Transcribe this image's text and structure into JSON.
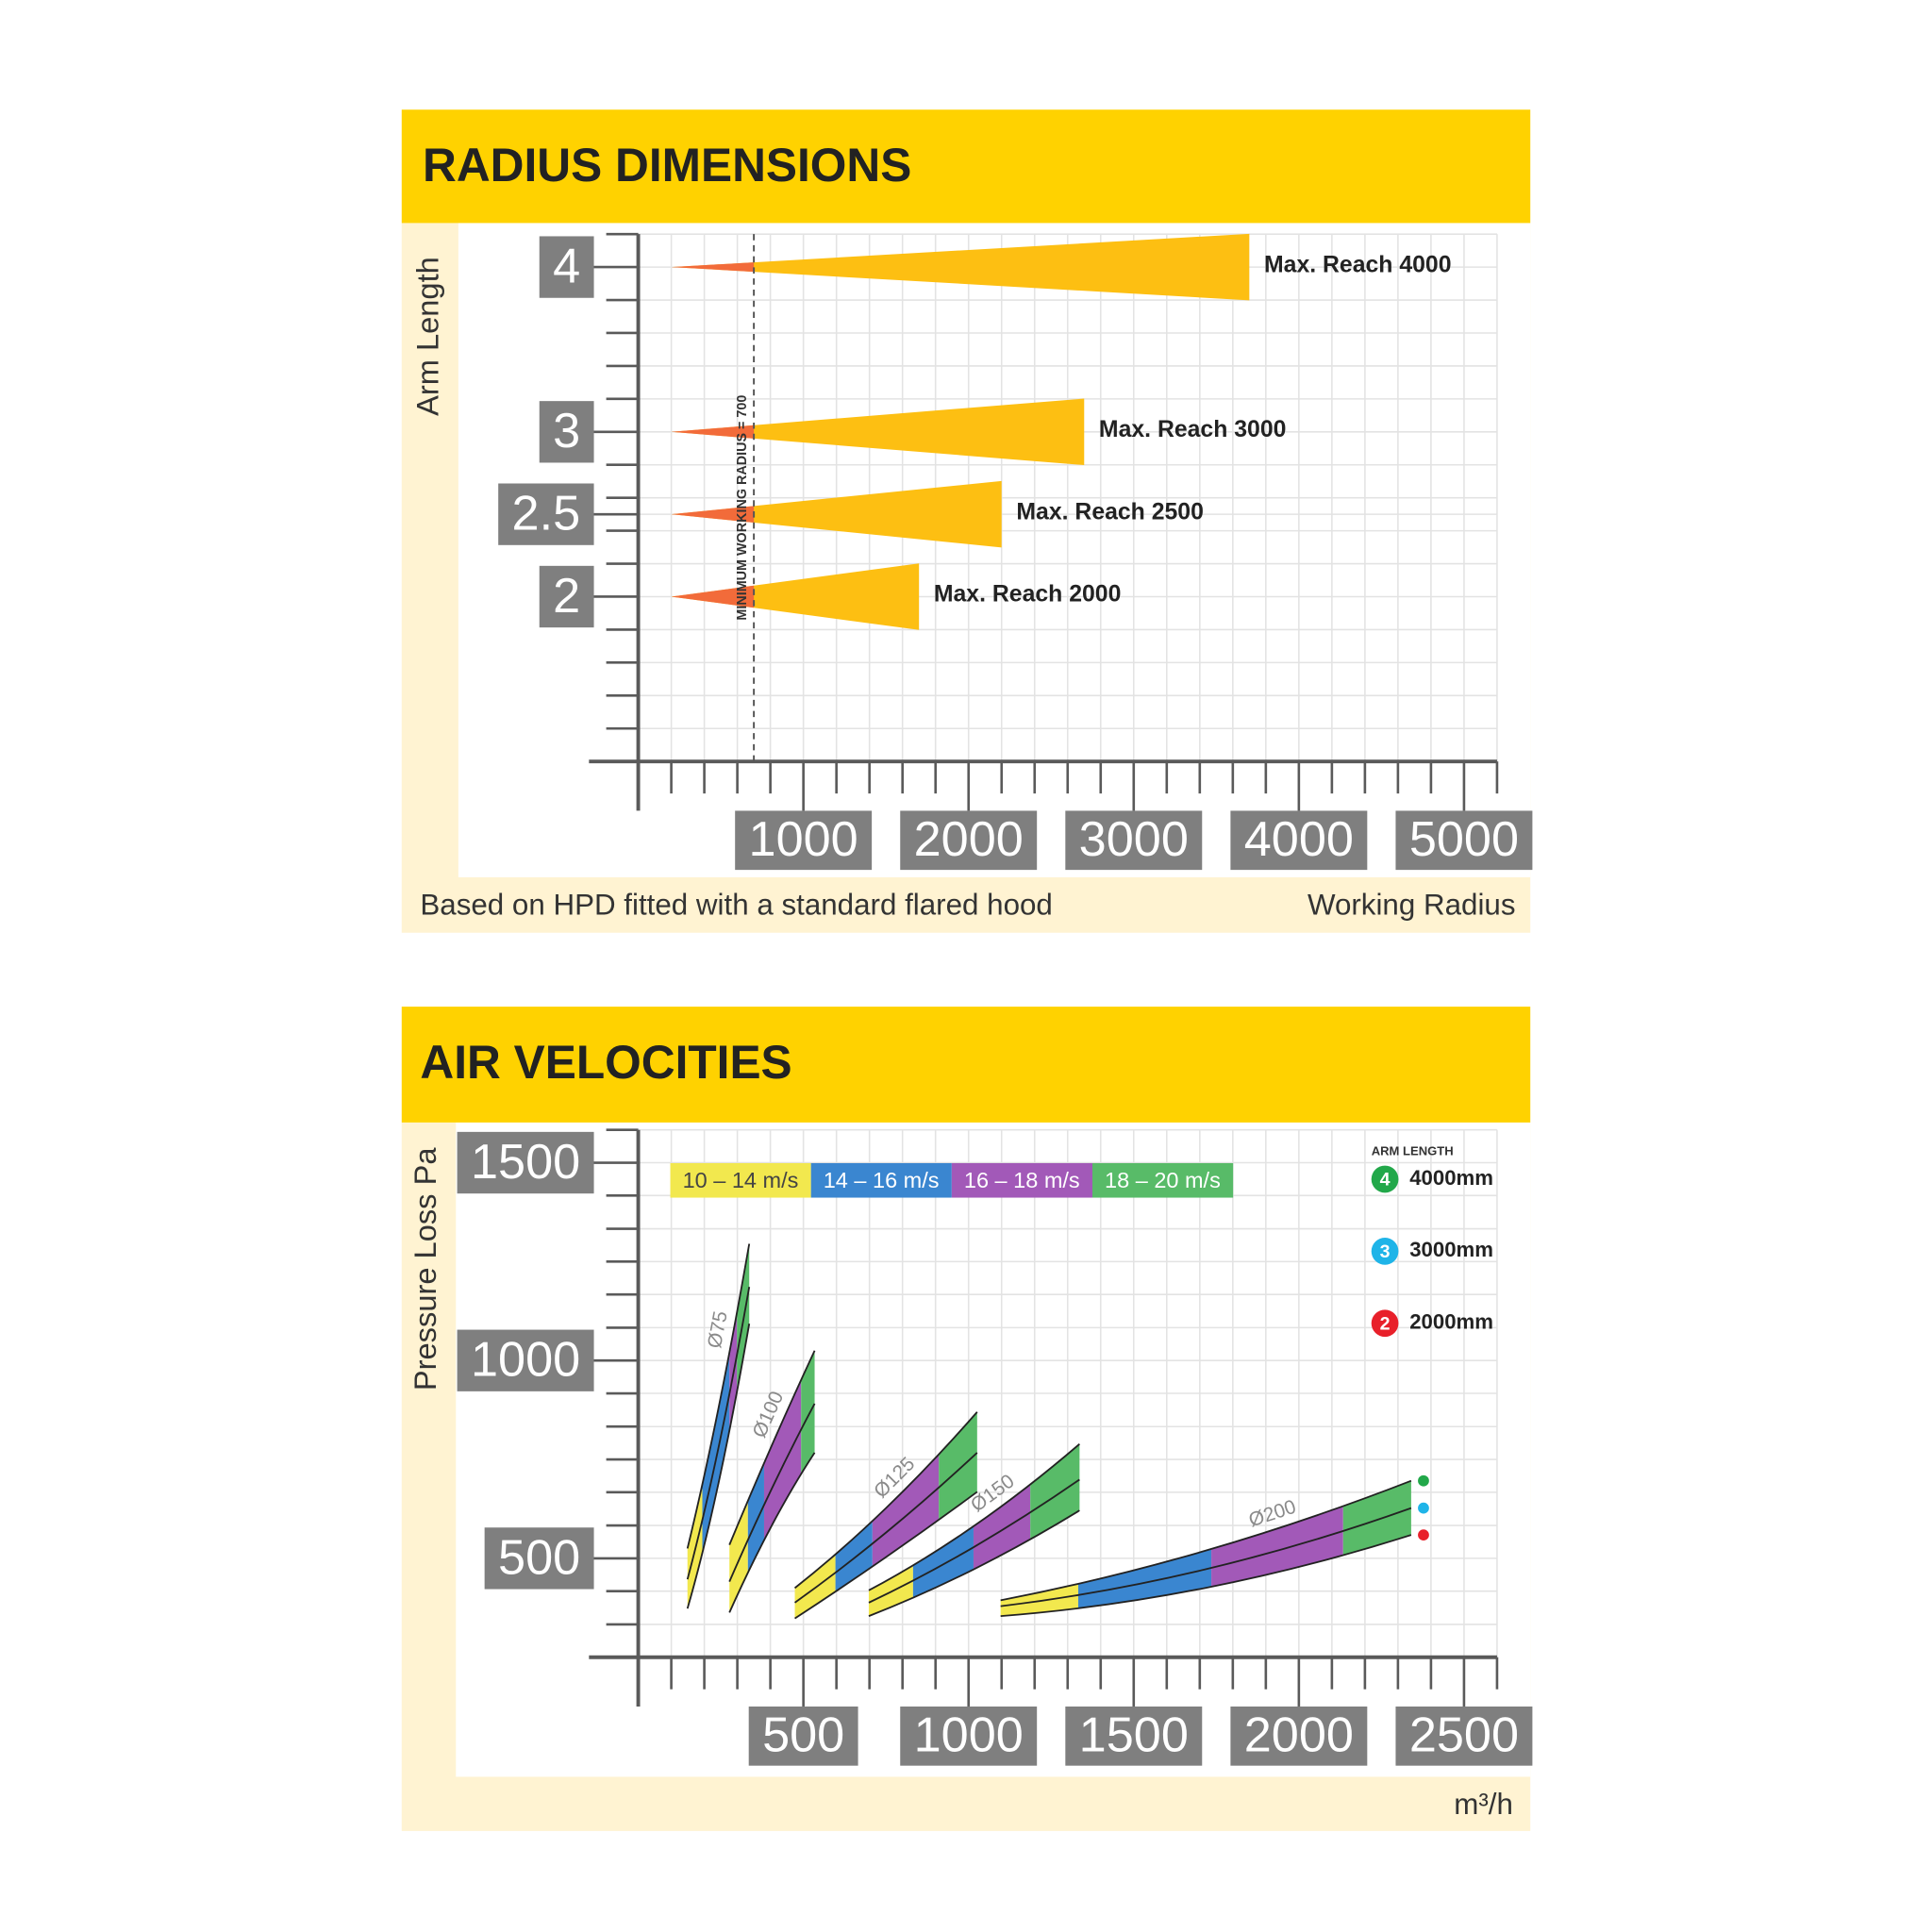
{
  "chart_data": [
    {
      "type": "wedge",
      "title": "RADIUS DIMENSIONS",
      "y_label": "Arm Length",
      "x_label": "Working Radius",
      "footnote": "Based on HPD fitted with a standard flared hood",
      "xlim": [
        0,
        5200
      ],
      "xticks": [
        1000,
        2000,
        3000,
        4000,
        5000
      ],
      "x_minor_ticks": [
        200,
        400,
        600,
        800,
        1200,
        1400,
        1600,
        1800,
        2200,
        2400,
        2600,
        2800,
        3200,
        3400,
        3600,
        3800,
        4200,
        4400,
        4600,
        4800,
        5200
      ],
      "ylim": [
        1,
        4.2
      ],
      "yticks": [
        2,
        2.5,
        3,
        4
      ],
      "y_minor_ticks": [
        1.2,
        1.4,
        1.6,
        1.8,
        2.2,
        2.4,
        2.6,
        2.8,
        3.2,
        3.4,
        3.6,
        3.8,
        4.2
      ],
      "grid": true,
      "min_radius": 700,
      "min_radius_label": "MINIMUM WORKING RADIUS = 700",
      "reach_color": "#fdbf12",
      "min_color": "#f26b3a",
      "series": [
        {
          "name": "Max. Reach 4000",
          "arm": 4,
          "start": 200,
          "end": 3700
        },
        {
          "name": "Max. Reach 3000",
          "arm": 3,
          "start": 200,
          "end": 2700
        },
        {
          "name": "Max. Reach 2500",
          "arm": 2.5,
          "start": 200,
          "end": 2200
        },
        {
          "name": "Max. Reach 2000",
          "arm": 2,
          "start": 200,
          "end": 1700
        }
      ]
    },
    {
      "type": "velocity",
      "title": "AIR VELOCITIES",
      "y_label": "Pressure Loss Pa",
      "x_label": "m³/h",
      "xlim": [
        0,
        2600
      ],
      "xticks": [
        500,
        1000,
        1500,
        2000,
        2500
      ],
      "x_minor_ticks": [
        100,
        200,
        300,
        400,
        600,
        700,
        800,
        900,
        1100,
        1200,
        1300,
        1400,
        1600,
        1700,
        1800,
        1900,
        2100,
        2200,
        2300,
        2400,
        2600
      ],
      "ylim": [
        250,
        1583
      ],
      "yticks": [
        500,
        1000,
        1500
      ],
      "y_minor_ticks": [
        333,
        417,
        583,
        667,
        750,
        833,
        917,
        1083,
        1167,
        1250,
        1333,
        1417,
        1583
      ],
      "grid": true,
      "velocity_bands": [
        {
          "name": "10 – 14 m/s",
          "color": "#f2e84e"
        },
        {
          "name": "14 – 16 m/s",
          "color": "#3a86d0"
        },
        {
          "name": "16 – 18 m/s",
          "color": "#a259b8"
        },
        {
          "name": "18 – 20 m/s",
          "color": "#58bb68"
        }
      ],
      "legend_title": "ARM LENGTH",
      "arm_lengths": [
        {
          "badge": "4",
          "name": "4000mm",
          "color": "#22a84a"
        },
        {
          "badge": "3",
          "name": "3000mm",
          "color": "#1fb4e8"
        },
        {
          "badge": "2",
          "name": "2000mm",
          "color": "#e8202a"
        }
      ],
      "ducts": [
        {
          "name": "Ø75",
          "x": [
            149,
            243,
            336
          ],
          "breaks": [
            194,
            276,
            299
          ],
          "lines": [
            [
              525,
              880,
              1295
            ],
            [
              447,
              780,
              1186
            ],
            [
              373,
              690,
              1093
            ]
          ],
          "markers": false
        },
        {
          "name": "Ø100",
          "x": [
            276,
            403,
            534
          ],
          "breaks": [
            332,
            381,
            493
          ],
          "lines": [
            [
              534,
              783,
              1025
            ],
            [
              441,
              674,
              891
            ],
            [
              363,
              581,
              767
            ]
          ],
          "markers": false
        },
        {
          "name": "Ø125",
          "x": [
            474,
            750,
            1026
          ],
          "breaks": [
            597,
            709,
            910
          ],
          "lines": [
            [
              425,
              627,
              870
            ],
            [
              388,
              565,
              767
            ],
            [
              348,
              503,
              668
            ]
          ],
          "markers": false
        },
        {
          "name": "Ø150",
          "x": [
            698,
            1015,
            1336
          ],
          "breaks": [
            832,
            1015,
            1187
          ],
          "lines": [
            [
              419,
              581,
              789
            ],
            [
              388,
              528,
              699
            ],
            [
              354,
              472,
              621
            ]
          ],
          "markers": false
        },
        {
          "name": "Ø200",
          "x": [
            1097,
            1716,
            2340
          ],
          "breaks": [
            1332,
            1735,
            2134
          ],
          "lines": [
            [
              394,
              519,
              696
            ],
            [
              379,
              472,
              627
            ],
            [
              354,
              425,
              559
            ]
          ],
          "markers": true
        }
      ]
    }
  ]
}
